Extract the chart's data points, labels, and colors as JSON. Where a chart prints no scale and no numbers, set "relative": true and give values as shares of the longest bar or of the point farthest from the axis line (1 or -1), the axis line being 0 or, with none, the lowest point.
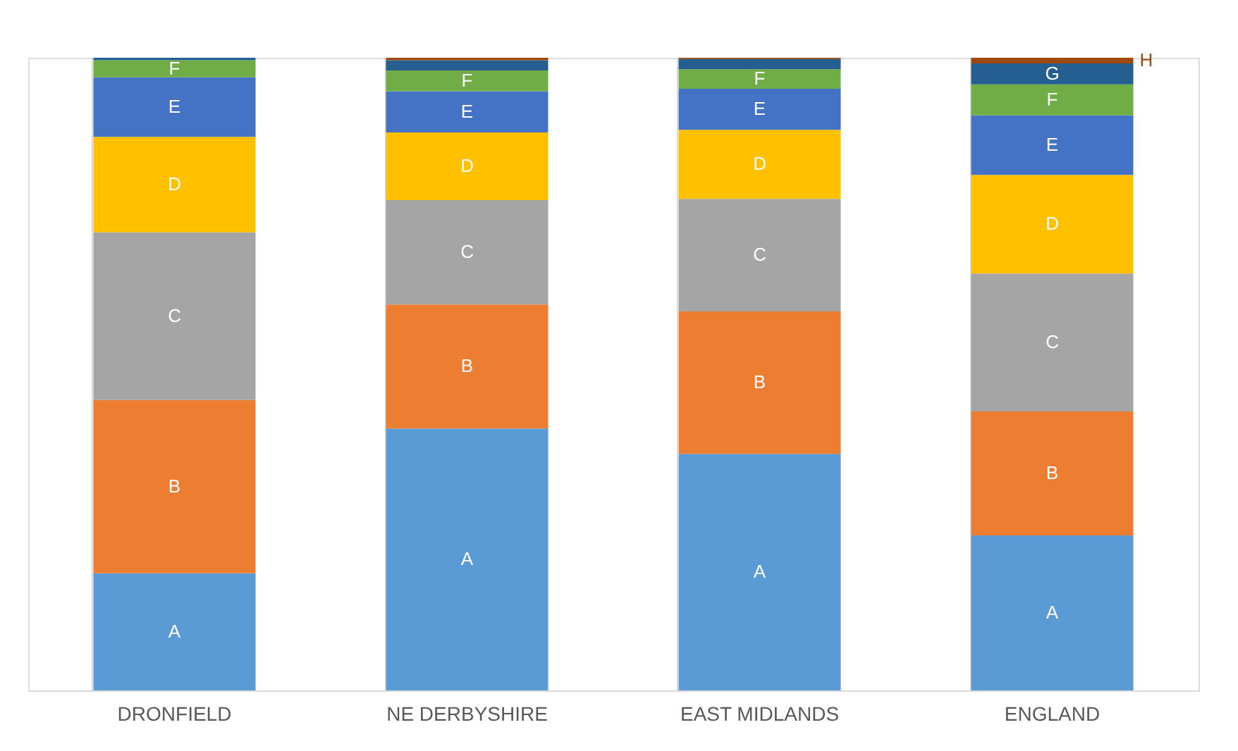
{
  "chart_data": {
    "type": "bar",
    "stacked": true,
    "relative": true,
    "grid": "x",
    "legend": false,
    "data_labels": false,
    "categories": [
      "DRONFIELD",
      "NE DERBYSHIRE",
      "EAST MIDLANDS",
      "ENGLAND"
    ],
    "series": [
      {
        "name": "A",
        "color": "#5b9bd5",
        "values": [
          0.185,
          0.414,
          0.374,
          0.245
        ]
      },
      {
        "name": "B",
        "color": "#ed7d31",
        "values": [
          0.274,
          0.196,
          0.225,
          0.196
        ]
      },
      {
        "name": "C",
        "color": "#a5a5a5",
        "values": [
          0.265,
          0.165,
          0.178,
          0.218
        ]
      },
      {
        "name": "D",
        "color": "#ffc000",
        "values": [
          0.151,
          0.107,
          0.109,
          0.156
        ]
      },
      {
        "name": "E",
        "color": "#4472c4",
        "values": [
          0.094,
          0.065,
          0.065,
          0.094
        ]
      },
      {
        "name": "F",
        "color": "#70ad47",
        "values": [
          0.027,
          0.033,
          0.031,
          0.049
        ]
      },
      {
        "name": "G",
        "color": "#255e91",
        "values": [
          0.004,
          0.016,
          0.016,
          0.033
        ]
      },
      {
        "name": "H",
        "color": "#9e480e",
        "values": [
          0.0,
          0.004,
          0.002,
          0.009
        ]
      }
    ]
  }
}
